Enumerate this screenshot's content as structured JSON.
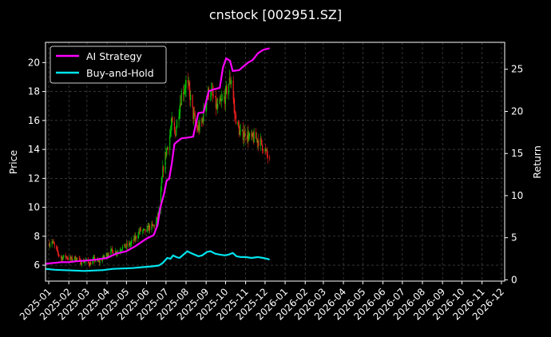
{
  "chart_data": {
    "type": "line",
    "title": "cnstock [002951.SZ]",
    "ylabel": "Price",
    "y2label": "Return",
    "ylim": [
      4.9,
      21.4
    ],
    "y2lim": [
      -0.15,
      28.2
    ],
    "yticks": [
      6,
      8,
      10,
      12,
      14,
      16,
      18,
      20
    ],
    "y2ticks": [
      0,
      5,
      10,
      15,
      20,
      25
    ],
    "xlim": [
      "2024-12-27",
      "2026-12-06"
    ],
    "xticks": [
      "2025-01",
      "2025-02",
      "2025-03",
      "2025-04",
      "2025-05",
      "2025-06",
      "2025-07",
      "2025-08",
      "2025-09",
      "2025-10",
      "2025-11",
      "2025-12",
      "2026-01",
      "2026-02",
      "2026-03",
      "2026-04",
      "2026-05",
      "2026-06",
      "2026-07",
      "2026-08",
      "2026-09",
      "2026-10",
      "2026-11",
      "2026-12"
    ],
    "grid": true,
    "legend_position": "top-left",
    "colors": {
      "background": "#000000",
      "up": "#00cc00",
      "down": "#ff2020",
      "ai": "#ff00ff",
      "bh": "#00e5ee",
      "grid": "#555555"
    },
    "price_path": [
      [
        "2025-01-02",
        7.5
      ],
      [
        "2025-01-06",
        7.7
      ],
      [
        "2025-01-10",
        7.3
      ],
      [
        "2025-01-14",
        6.9
      ],
      [
        "2025-01-20",
        6.5
      ],
      [
        "2025-01-27",
        6.6
      ],
      [
        "2025-02-05",
        6.4
      ],
      [
        "2025-02-12",
        6.5
      ],
      [
        "2025-02-20",
        6.2
      ],
      [
        "2025-02-27",
        6.3
      ],
      [
        "2025-03-05",
        6.1
      ],
      [
        "2025-03-12",
        6.4
      ],
      [
        "2025-03-19",
        6.2
      ],
      [
        "2025-03-26",
        6.5
      ],
      [
        "2025-04-02",
        6.8
      ],
      [
        "2025-04-09",
        7.0
      ],
      [
        "2025-04-16",
        6.9
      ],
      [
        "2025-04-23",
        7.2
      ],
      [
        "2025-04-30",
        7.3
      ],
      [
        "2025-05-08",
        7.5
      ],
      [
        "2025-05-15",
        7.9
      ],
      [
        "2025-05-22",
        8.4
      ],
      [
        "2025-05-29",
        8.3
      ],
      [
        "2025-06-05",
        8.6
      ],
      [
        "2025-06-12",
        8.7
      ],
      [
        "2025-06-18",
        9.2
      ],
      [
        "2025-06-22",
        10.4
      ],
      [
        "2025-06-26",
        12.5
      ],
      [
        "2025-07-01",
        13.8
      ],
      [
        "2025-07-05",
        14.5
      ],
      [
        "2025-07-10",
        15.8
      ],
      [
        "2025-07-15",
        15.0
      ],
      [
        "2025-07-20",
        16.5
      ],
      [
        "2025-07-25",
        17.8
      ],
      [
        "2025-08-01",
        18.6
      ],
      [
        "2025-08-06",
        18.0
      ],
      [
        "2025-08-12",
        16.4
      ],
      [
        "2025-08-18",
        15.4
      ],
      [
        "2025-08-24",
        15.6
      ],
      [
        "2025-09-01",
        17.4
      ],
      [
        "2025-09-06",
        18.2
      ],
      [
        "2025-09-12",
        17.6
      ],
      [
        "2025-09-18",
        16.8
      ],
      [
        "2025-09-24",
        17.2
      ],
      [
        "2025-09-30",
        17.6
      ],
      [
        "2025-10-06",
        18.6
      ],
      [
        "2025-10-10",
        18.9
      ],
      [
        "2025-10-15",
        16.5
      ],
      [
        "2025-10-20",
        15.6
      ],
      [
        "2025-10-25",
        14.9
      ],
      [
        "2025-11-01",
        15.2
      ],
      [
        "2025-11-08",
        14.7
      ],
      [
        "2025-11-15",
        14.8
      ],
      [
        "2025-11-22",
        14.6
      ],
      [
        "2025-11-28",
        14.2
      ],
      [
        "2025-12-02",
        13.8
      ],
      [
        "2025-12-05",
        13.5
      ],
      [
        "2025-12-08",
        13.1
      ]
    ],
    "series": [
      {
        "name": "AI Strategy",
        "color": "#ff00ff",
        "points": [
          [
            "2024-12-27",
            1.9
          ],
          [
            "2025-01-08",
            2.0
          ],
          [
            "2025-01-20",
            2.1
          ],
          [
            "2025-02-01",
            2.1
          ],
          [
            "2025-02-12",
            2.2
          ],
          [
            "2025-03-01",
            2.3
          ],
          [
            "2025-03-15",
            2.4
          ],
          [
            "2025-04-01",
            2.6
          ],
          [
            "2025-04-15",
            3.1
          ],
          [
            "2025-05-01",
            3.4
          ],
          [
            "2025-05-15",
            4.0
          ],
          [
            "2025-06-01",
            4.9
          ],
          [
            "2025-06-12",
            5.3
          ],
          [
            "2025-06-18",
            6.5
          ],
          [
            "2025-06-22",
            8.5
          ],
          [
            "2025-06-28",
            10.2
          ],
          [
            "2025-07-02",
            11.8
          ],
          [
            "2025-07-06",
            12.0
          ],
          [
            "2025-07-10",
            13.8
          ],
          [
            "2025-07-14",
            16.1
          ],
          [
            "2025-07-18",
            16.4
          ],
          [
            "2025-07-25",
            16.8
          ],
          [
            "2025-08-05",
            16.9
          ],
          [
            "2025-08-12",
            17.0
          ],
          [
            "2025-08-16",
            18.5
          ],
          [
            "2025-08-20",
            19.8
          ],
          [
            "2025-08-28",
            19.9
          ],
          [
            "2025-09-05",
            22.4
          ],
          [
            "2025-09-12",
            22.6
          ],
          [
            "2025-09-22",
            22.8
          ],
          [
            "2025-09-27",
            25.2
          ],
          [
            "2025-10-02",
            26.3
          ],
          [
            "2025-10-08",
            26.0
          ],
          [
            "2025-10-12",
            24.8
          ],
          [
            "2025-10-22",
            24.9
          ],
          [
            "2025-10-28",
            25.3
          ],
          [
            "2025-11-05",
            25.8
          ],
          [
            "2025-11-12",
            26.1
          ],
          [
            "2025-11-20",
            26.9
          ],
          [
            "2025-11-28",
            27.3
          ],
          [
            "2025-12-03",
            27.4
          ],
          [
            "2025-12-08",
            27.5
          ]
        ]
      },
      {
        "name": "Buy-and-Hold",
        "color": "#00e5ee",
        "points": [
          [
            "2024-12-27",
            1.3
          ],
          [
            "2025-01-10",
            1.2
          ],
          [
            "2025-01-25",
            1.15
          ],
          [
            "2025-02-10",
            1.1
          ],
          [
            "2025-02-25",
            1.05
          ],
          [
            "2025-03-10",
            1.1
          ],
          [
            "2025-03-25",
            1.15
          ],
          [
            "2025-04-10",
            1.3
          ],
          [
            "2025-04-25",
            1.35
          ],
          [
            "2025-05-10",
            1.4
          ],
          [
            "2025-05-25",
            1.5
          ],
          [
            "2025-06-10",
            1.6
          ],
          [
            "2025-06-20",
            1.7
          ],
          [
            "2025-06-26",
            2.0
          ],
          [
            "2025-07-03",
            2.6
          ],
          [
            "2025-07-08",
            2.5
          ],
          [
            "2025-07-12",
            2.9
          ],
          [
            "2025-07-17",
            2.7
          ],
          [
            "2025-07-22",
            2.6
          ],
          [
            "2025-07-28",
            3.0
          ],
          [
            "2025-08-03",
            3.4
          ],
          [
            "2025-08-08",
            3.2
          ],
          [
            "2025-08-14",
            3.0
          ],
          [
            "2025-08-20",
            2.8
          ],
          [
            "2025-08-26",
            2.9
          ],
          [
            "2025-09-02",
            3.3
          ],
          [
            "2025-09-08",
            3.4
          ],
          [
            "2025-09-15",
            3.1
          ],
          [
            "2025-09-22",
            3.0
          ],
          [
            "2025-09-30",
            2.9
          ],
          [
            "2025-10-06",
            3.0
          ],
          [
            "2025-10-12",
            3.2
          ],
          [
            "2025-10-18",
            2.8
          ],
          [
            "2025-10-25",
            2.7
          ],
          [
            "2025-11-01",
            2.7
          ],
          [
            "2025-11-10",
            2.6
          ],
          [
            "2025-11-20",
            2.7
          ],
          [
            "2025-11-28",
            2.6
          ],
          [
            "2025-12-04",
            2.5
          ],
          [
            "2025-12-08",
            2.4
          ]
        ]
      }
    ]
  }
}
